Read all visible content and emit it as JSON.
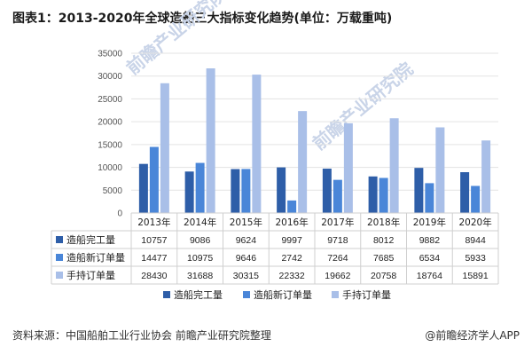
{
  "title": "图表1：2013-2020年全球造船三大指标变化趋势(单位：万载重吨)",
  "footer": {
    "source": "资料来源：中国船舶工业行业协会 前瞻产业研究院整理",
    "brand": "@前瞻经济学人APP"
  },
  "watermark": "前瞻产业研究院",
  "chart_data": {
    "type": "bar",
    "categories": [
      "2013年",
      "2014年",
      "2015年",
      "2016年",
      "2017年",
      "2018年",
      "2019年",
      "2020年"
    ],
    "series": [
      {
        "name": "造船完工量",
        "values": [
          10757,
          9086,
          9624,
          9997,
          9718,
          8012,
          9882,
          8944
        ],
        "color": "#2e5ea8"
      },
      {
        "name": "造船新订单量",
        "values": [
          14477,
          10975,
          9646,
          2742,
          7264,
          7685,
          6534,
          5933
        ],
        "color": "#4a86d8"
      },
      {
        "name": "手持订单量",
        "values": [
          28430,
          31688,
          30315,
          22332,
          19662,
          20758,
          18764,
          15891
        ],
        "color": "#a9bfe8"
      }
    ],
    "ylim": [
      0,
      35000
    ],
    "yticks": [
      0,
      5000,
      10000,
      15000,
      20000,
      25000,
      30000,
      35000
    ],
    "grid": true,
    "data_table": true,
    "legend": "bottom"
  }
}
